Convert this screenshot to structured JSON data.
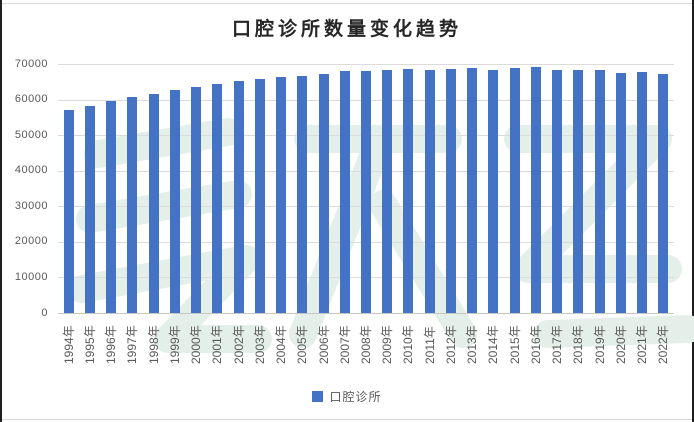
{
  "title": "口腔诊所数量变化趋势",
  "chart_data": {
    "type": "bar",
    "title": "口腔诊所数量变化趋势",
    "categories": [
      "1994年",
      "1995年",
      "1996年",
      "1997年",
      "1998年",
      "1999年",
      "2000年",
      "2001年",
      "2002年",
      "2003年",
      "2004年",
      "2005年",
      "2006年",
      "2007年",
      "2008年",
      "2009年",
      "2010年",
      "2011年",
      "2012年",
      "2013年",
      "2014年",
      "2015年",
      "2016年",
      "2017年",
      "2018年",
      "2019年",
      "2020年",
      "2021年",
      "2022年"
    ],
    "series": [
      {
        "name": "口腔诊所",
        "values": [
          57000,
          58300,
          59500,
          60600,
          61600,
          62600,
          63500,
          64300,
          65100,
          65900,
          66400,
          66700,
          67300,
          67900,
          67900,
          68200,
          68600,
          68300,
          68600,
          68900,
          68400,
          68800,
          69200,
          68300,
          68300,
          68400,
          67600,
          67700,
          67300
        ]
      }
    ],
    "xlabel": "",
    "ylabel": "",
    "ylim": [
      0,
      70000
    ],
    "yticks": [
      0,
      10000,
      20000,
      30000,
      40000,
      50000,
      60000,
      70000
    ],
    "grid": true,
    "legend_position": "bottom"
  },
  "legend": {
    "items": [
      {
        "label": "口腔诊所",
        "color": "#4472C4"
      }
    ]
  },
  "colors": {
    "bar": "#4472C4",
    "gridline": "#dcdcdc",
    "axis_line": "#c6c6c6",
    "tick_text": "#595959",
    "title_text": "#262626",
    "watermark": "#e3efe8",
    "background": "#ffffff"
  }
}
